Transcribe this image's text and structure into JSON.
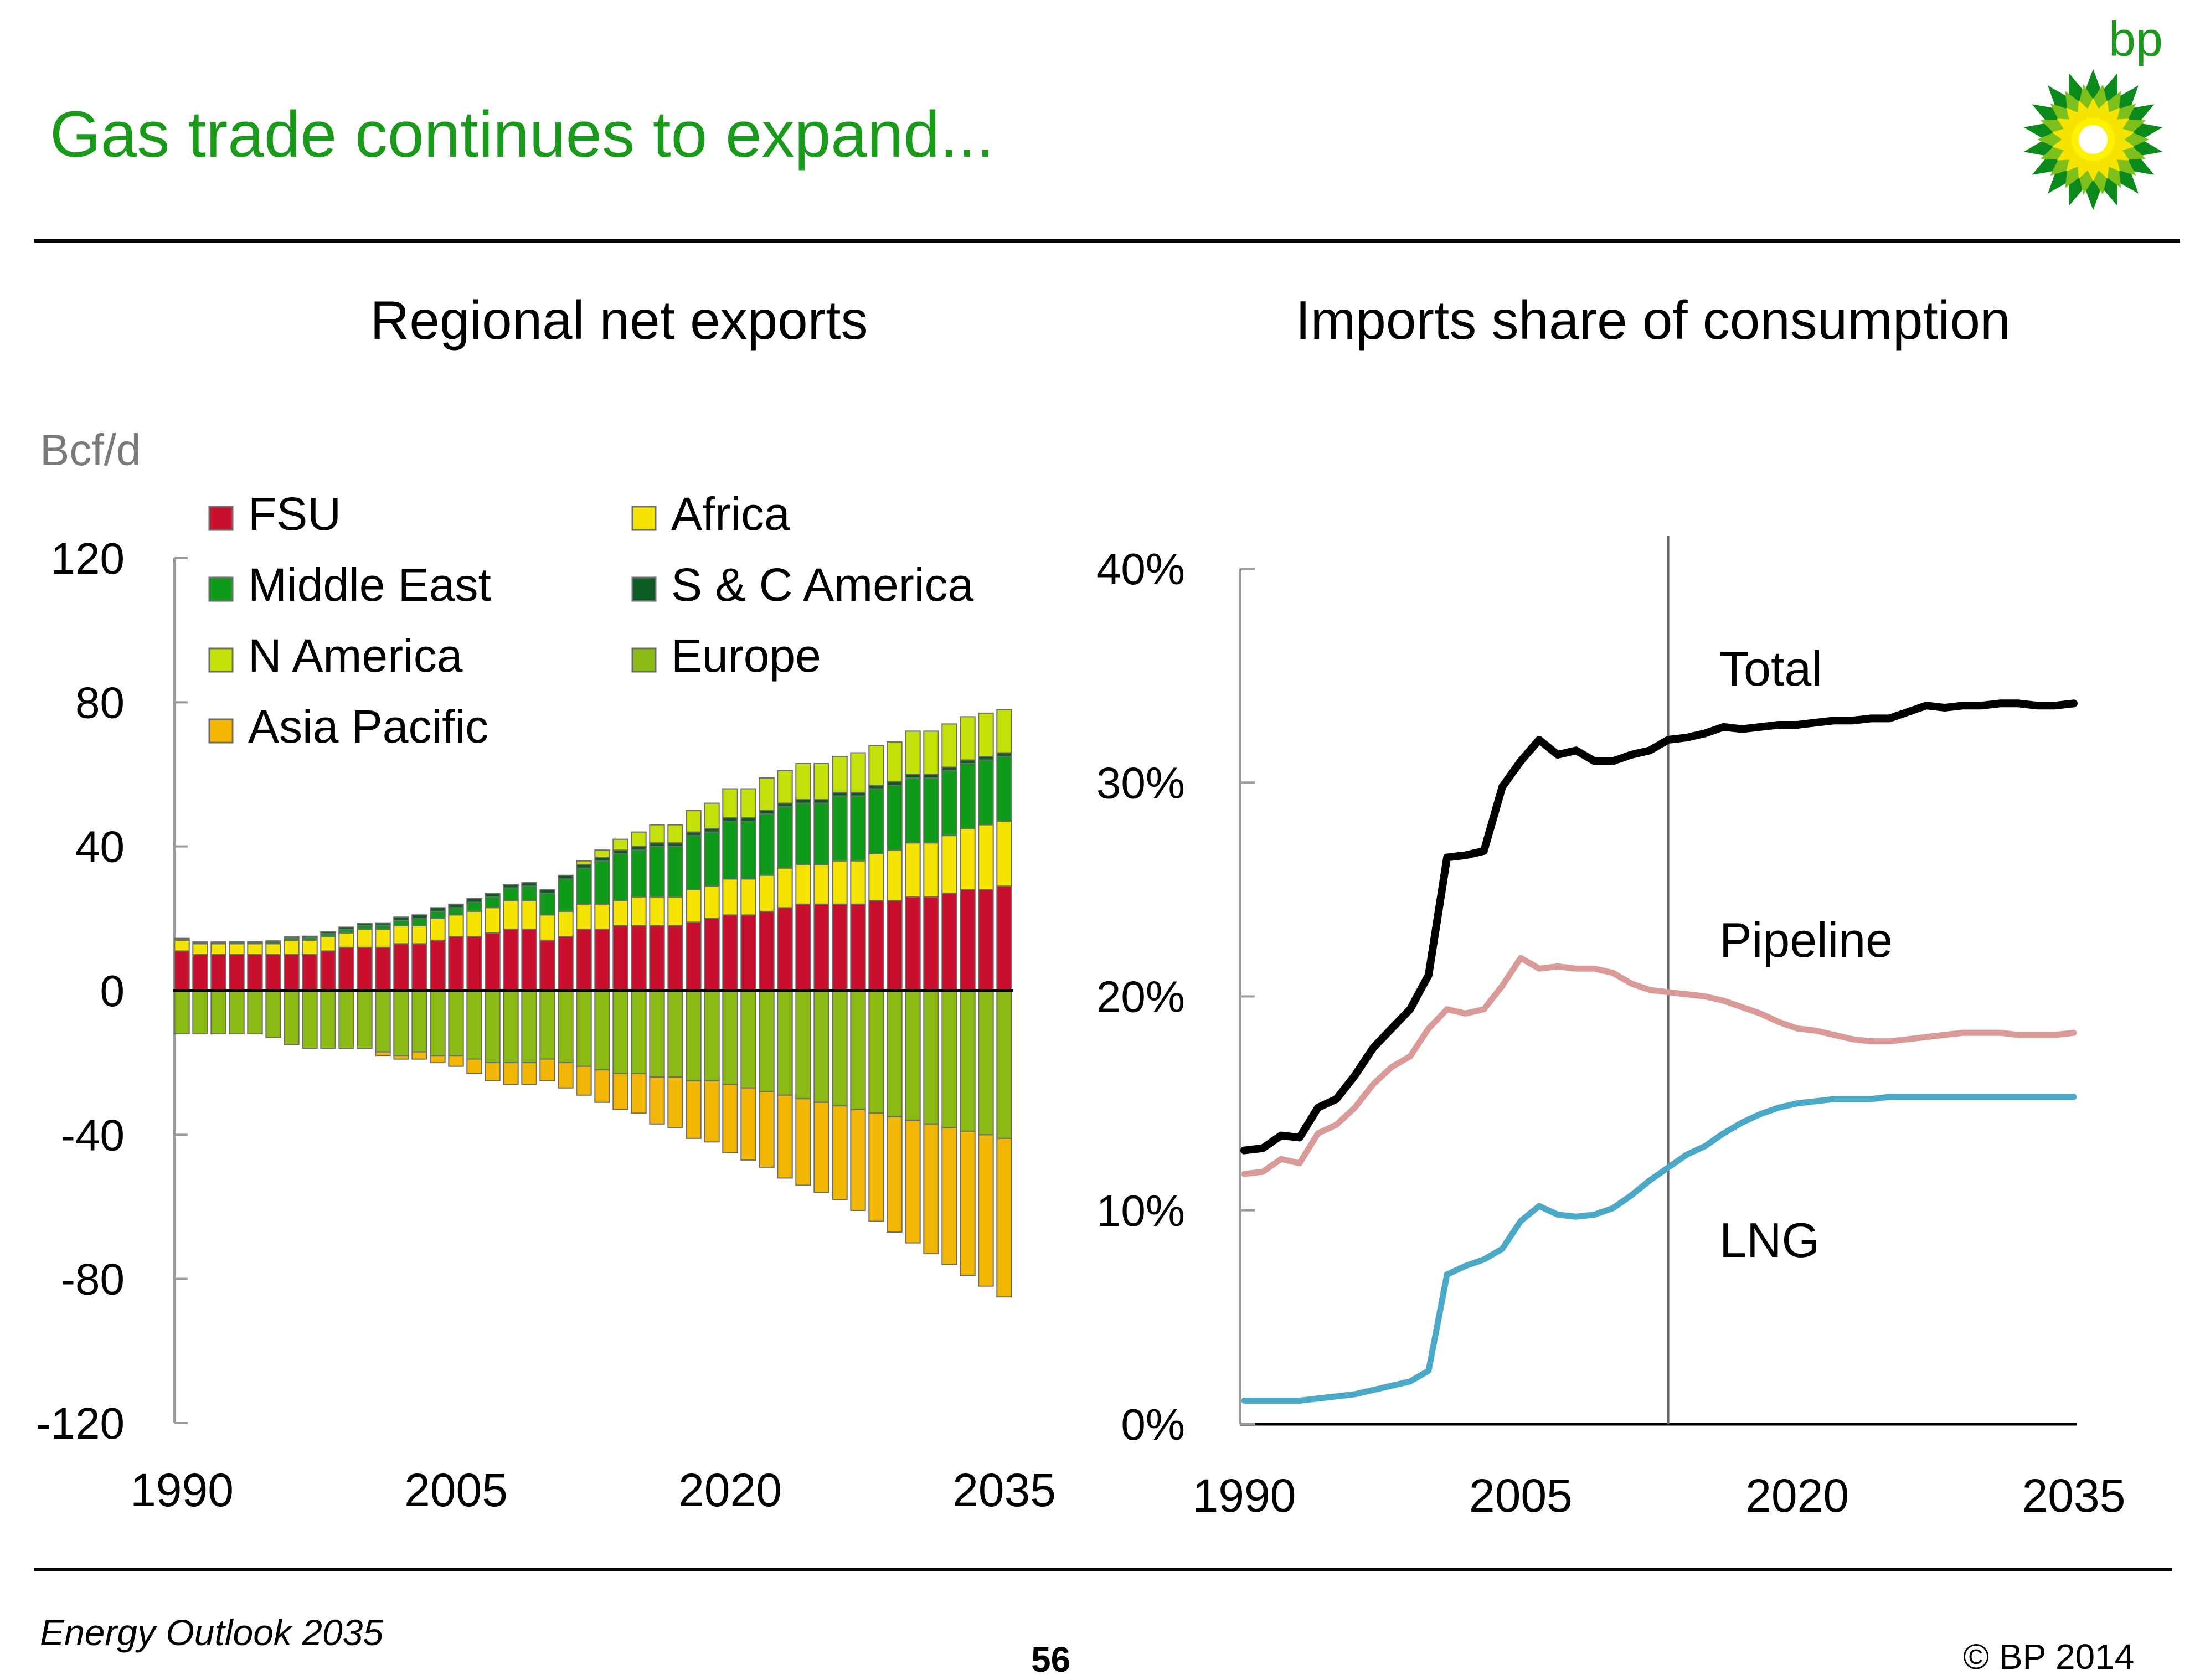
{
  "page": {
    "title": "Gas trade continues to expand...",
    "logo_text": "bp",
    "footer_left": "Energy Outlook 2035",
    "page_number": "56",
    "copyright": "© BP 2014"
  },
  "colors": {
    "title": "#1a9a1a",
    "fsu": "#c8102e",
    "africa": "#f5e400",
    "middle_east": "#0f9a1a",
    "sc_america": "#0b5d23",
    "n_america": "#c4e20a",
    "europe": "#8cba14",
    "asia_pacific": "#f2b705",
    "total": "#000000",
    "pipeline": "#d99a98",
    "lng": "#4ba9c8"
  },
  "chart_data": [
    {
      "type": "bar",
      "stacked": true,
      "title": "Regional net exports",
      "ylabel": "Bcf/d",
      "ylim": [
        -120,
        120
      ],
      "yticks": [
        120,
        80,
        40,
        0,
        -40,
        -80,
        -120
      ],
      "xticks": [
        "1990",
        "2005",
        "2020",
        "2035"
      ],
      "categories": [
        1990,
        1991,
        1992,
        1993,
        1994,
        1995,
        1996,
        1997,
        1998,
        1999,
        2000,
        2001,
        2002,
        2003,
        2004,
        2005,
        2006,
        2007,
        2008,
        2009,
        2010,
        2011,
        2012,
        2013,
        2014,
        2015,
        2016,
        2017,
        2018,
        2019,
        2020,
        2021,
        2022,
        2023,
        2024,
        2025,
        2026,
        2027,
        2028,
        2029,
        2030,
        2031,
        2032,
        2033,
        2034,
        2035
      ],
      "legend": [
        "FSU",
        "Africa",
        "Middle East",
        "S & C America",
        "N America",
        "Europe",
        "Asia Pacific"
      ],
      "series": [
        {
          "name": "FSU",
          "sign": "positive",
          "values": [
            11,
            10,
            10,
            10,
            10,
            10,
            10,
            10,
            11,
            12,
            12,
            12,
            13,
            13,
            14,
            15,
            15,
            16,
            17,
            17,
            14,
            15,
            17,
            17,
            18,
            18,
            18,
            18,
            19,
            20,
            21,
            21,
            22,
            23,
            24,
            24,
            24,
            24,
            25,
            25,
            26,
            26,
            27,
            28,
            28,
            29
          ]
        },
        {
          "name": "Africa",
          "sign": "positive",
          "values": [
            3,
            3,
            3,
            3,
            3,
            3,
            4,
            4,
            4,
            4,
            5,
            5,
            5,
            5,
            6,
            6,
            7,
            7,
            8,
            8,
            7,
            7,
            7,
            7,
            7,
            8,
            8,
            8,
            9,
            9,
            10,
            10,
            10,
            11,
            11,
            11,
            12,
            12,
            13,
            14,
            15,
            15,
            16,
            17,
            18,
            18
          ]
        },
        {
          "name": "Middle East",
          "sign": "positive",
          "values": [
            0.3,
            0.3,
            0.3,
            0.4,
            0.4,
            0.5,
            0.6,
            0.7,
            0.8,
            1,
            1,
            1,
            1.5,
            2,
            2,
            2,
            2.5,
            3,
            3.5,
            4,
            6,
            9,
            10,
            12,
            13,
            13,
            14,
            14,
            15,
            15,
            16,
            16,
            17,
            17,
            17,
            17,
            18,
            18,
            18,
            18,
            18,
            18,
            18,
            18,
            18,
            18
          ]
        },
        {
          "name": "S & C America",
          "sign": "positive",
          "values": [
            0.2,
            0.2,
            0.2,
            0.2,
            0.2,
            0.3,
            0.3,
            0.4,
            0.5,
            0.6,
            0.7,
            0.8,
            0.9,
            1,
            1,
            1,
            1,
            1,
            1,
            1,
            1,
            1,
            1,
            1,
            1,
            1,
            1,
            1,
            1,
            1,
            1,
            1,
            1,
            1,
            1,
            1,
            1,
            1,
            1,
            1,
            1,
            1,
            1,
            1,
            1,
            1
          ]
        },
        {
          "name": "N America",
          "sign": "positive",
          "values": [
            0,
            0,
            0,
            0,
            0,
            0,
            0,
            0,
            0,
            0,
            0,
            0,
            0,
            0,
            0,
            0,
            0,
            0,
            0,
            0,
            0,
            0,
            1,
            2,
            3,
            4,
            5,
            5,
            6,
            7,
            8,
            8,
            9,
            9,
            10,
            10,
            10,
            11,
            11,
            11,
            12,
            12,
            12,
            12,
            12,
            12
          ]
        },
        {
          "name": "Europe",
          "sign": "negative",
          "values": [
            -12,
            -12,
            -12,
            -12,
            -12,
            -13,
            -15,
            -16,
            -16,
            -16,
            -16,
            -17,
            -18,
            -17,
            -18,
            -18,
            -19,
            -20,
            -20,
            -20,
            -19,
            -20,
            -21,
            -22,
            -23,
            -23,
            -24,
            -24,
            -25,
            -25,
            -26,
            -27,
            -28,
            -29,
            -30,
            -31,
            -32,
            -33,
            -34,
            -35,
            -36,
            -37,
            -38,
            -39,
            -40,
            -41
          ]
        },
        {
          "name": "Asia Pacific",
          "sign": "negative",
          "values": [
            0,
            0,
            0,
            0,
            0,
            0,
            0,
            0,
            0,
            0,
            0,
            -1,
            -1,
            -2,
            -2,
            -3,
            -4,
            -5,
            -6,
            -6,
            -6,
            -7,
            -8,
            -9,
            -10,
            -11,
            -13,
            -14,
            -16,
            -17,
            -19,
            -20,
            -21,
            -23,
            -24,
            -25,
            -26,
            -28,
            -30,
            -32,
            -34,
            -36,
            -38,
            -40,
            -42,
            -44
          ]
        }
      ]
    },
    {
      "type": "line",
      "title": "Imports share of consumption",
      "ylim": [
        0,
        40
      ],
      "yticks": [
        "0%",
        "10%",
        "20%",
        "30%",
        "40%"
      ],
      "xticks": [
        "1990",
        "2005",
        "2020",
        "2035"
      ],
      "xlim": [
        1990,
        2035
      ],
      "projection_start": 2013,
      "x": [
        1990,
        1991,
        1992,
        1993,
        1994,
        1995,
        1996,
        1997,
        1998,
        1999,
        2000,
        2001,
        2002,
        2003,
        2004,
        2005,
        2006,
        2007,
        2008,
        2009,
        2010,
        2011,
        2012,
        2013,
        2014,
        2015,
        2016,
        2017,
        2018,
        2019,
        2020,
        2021,
        2022,
        2023,
        2024,
        2025,
        2026,
        2027,
        2028,
        2029,
        2030,
        2031,
        2032,
        2033,
        2034,
        2035
      ],
      "series": [
        {
          "name": "Total",
          "values": [
            12.8,
            12.9,
            13.5,
            13.4,
            14.8,
            15.2,
            16.3,
            17.6,
            18.5,
            19.4,
            21.0,
            26.5,
            26.6,
            26.8,
            29.8,
            31.0,
            32.0,
            31.3,
            31.5,
            31.0,
            31.0,
            31.3,
            31.5,
            32.0,
            32.1,
            32.3,
            32.6,
            32.5,
            32.6,
            32.7,
            32.7,
            32.8,
            32.9,
            32.9,
            33.0,
            33.0,
            33.3,
            33.6,
            33.5,
            33.6,
            33.6,
            33.7,
            33.7,
            33.6,
            33.6,
            33.7
          ]
        },
        {
          "name": "Pipeline",
          "values": [
            11.7,
            11.8,
            12.4,
            12.2,
            13.6,
            14.0,
            14.8,
            15.9,
            16.7,
            17.2,
            18.5,
            19.4,
            19.2,
            19.4,
            20.5,
            21.8,
            21.3,
            21.4,
            21.3,
            21.3,
            21.1,
            20.6,
            20.3,
            20.2,
            20.1,
            20.0,
            19.8,
            19.5,
            19.2,
            18.8,
            18.5,
            18.4,
            18.2,
            18.0,
            17.9,
            17.9,
            18.0,
            18.1,
            18.2,
            18.3,
            18.3,
            18.3,
            18.2,
            18.2,
            18.2,
            18.3
          ]
        },
        {
          "name": "LNG",
          "values": [
            1.1,
            1.1,
            1.1,
            1.1,
            1.2,
            1.3,
            1.4,
            1.6,
            1.8,
            2.0,
            2.5,
            7.0,
            7.4,
            7.7,
            8.2,
            9.5,
            10.2,
            9.8,
            9.7,
            9.8,
            10.1,
            10.7,
            11.4,
            12.0,
            12.6,
            13.0,
            13.6,
            14.1,
            14.5,
            14.8,
            15.0,
            15.1,
            15.2,
            15.2,
            15.2,
            15.3,
            15.3,
            15.3,
            15.3,
            15.3,
            15.3,
            15.3,
            15.3,
            15.3,
            15.3,
            15.3
          ]
        }
      ]
    }
  ]
}
